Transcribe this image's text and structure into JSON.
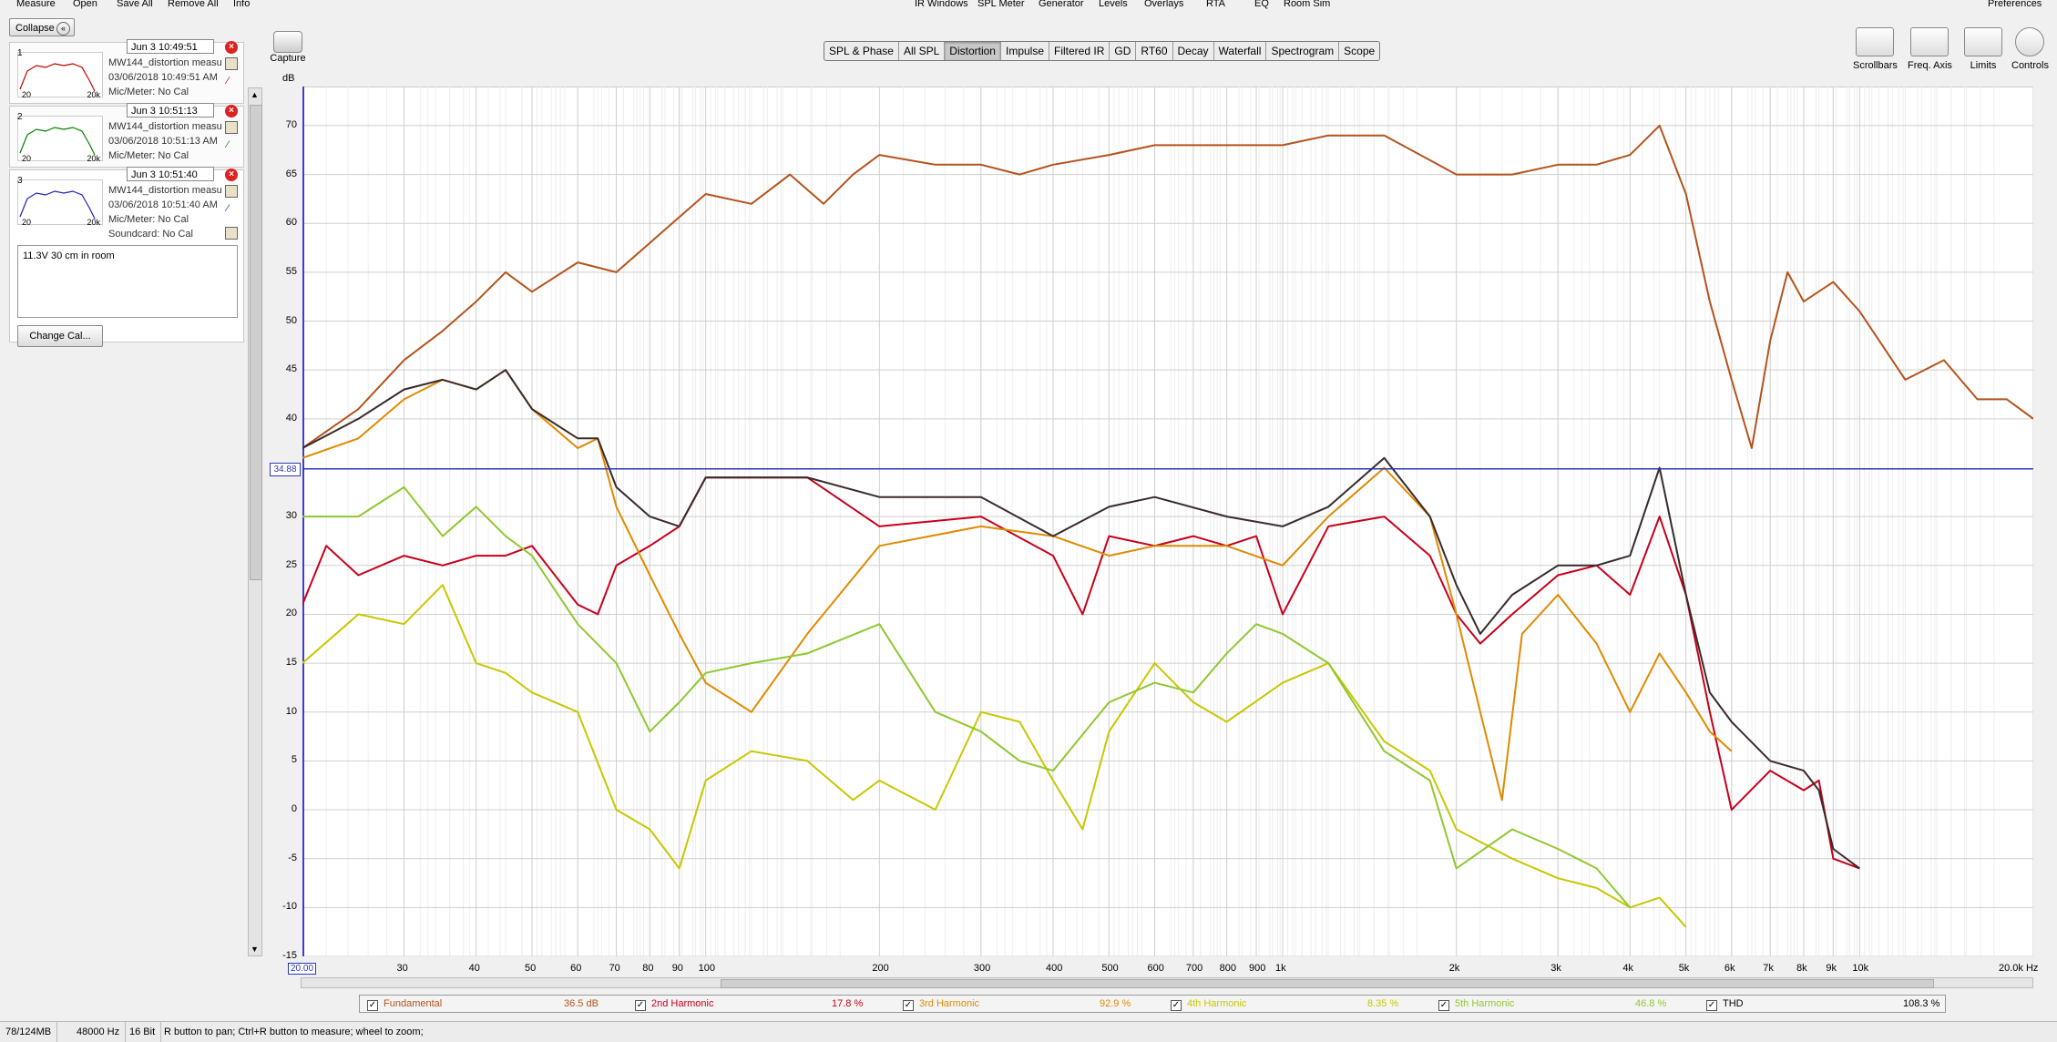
{
  "menu": {
    "left": [
      "Measure",
      "Open",
      "Save All",
      "Remove All",
      "Info"
    ],
    "center": [
      "IR Windows",
      "SPL Meter",
      "Generator",
      "Levels",
      "Overlays",
      "RTA",
      "EQ",
      "Room Sim"
    ],
    "right": "Preferences"
  },
  "panel": {
    "collapse_label": "Collapse",
    "measurements": [
      {
        "num": "1",
        "time": "Jun 3 10:49:51",
        "name": "MW144_distortion measu",
        "date": "03/06/2018 10:49:51 AM",
        "mic": "Mic/Meter: No Cal",
        "sound": "",
        "color": "#c00000",
        "thumb_lo": "20",
        "thumb_hi": "20k"
      },
      {
        "num": "2",
        "time": "Jun 3 10:51:13",
        "name": "MW144_distortion measu",
        "date": "03/06/2018 10:51:13 AM",
        "mic": "Mic/Meter: No Cal",
        "sound": "",
        "color": "#008000",
        "thumb_lo": "20",
        "thumb_hi": "20k"
      },
      {
        "num": "3",
        "time": "Jun 3 10:51:40",
        "name": "MW144_distortion measu",
        "date": "03/06/2018 10:51:40 AM",
        "mic": "Mic/Meter: No Cal",
        "sound": "Soundcard: No Cal",
        "color": "#2020c0",
        "thumb_lo": "20",
        "thumb_hi": "20k"
      }
    ],
    "notes": "11.3V 30 cm in room",
    "change_cal": "Change Cal..."
  },
  "capture": {
    "label": "Capture"
  },
  "tabs": [
    {
      "label": "SPL & Phase",
      "active": false
    },
    {
      "label": "All SPL",
      "active": false
    },
    {
      "label": "Distortion",
      "active": true
    },
    {
      "label": "Impulse",
      "active": false
    },
    {
      "label": "Filtered IR",
      "active": false
    },
    {
      "label": "GD",
      "active": false
    },
    {
      "label": "RT60",
      "active": false
    },
    {
      "label": "Decay",
      "active": false
    },
    {
      "label": "Waterfall",
      "active": false
    },
    {
      "label": "Spectrogram",
      "active": false
    },
    {
      "label": "Scope",
      "active": false
    }
  ],
  "tools": [
    "Scrollbars",
    "Freq. Axis",
    "Limits",
    "Controls"
  ],
  "legend": [
    {
      "label": "Fundamental",
      "value": "36.5 dB",
      "color": "#b5531c"
    },
    {
      "label": "2nd Harmonic",
      "value": "17.8 %",
      "color": "#c8001a"
    },
    {
      "label": "3rd Harmonic",
      "value": "92.9 %",
      "color": "#e08a00"
    },
    {
      "label": "4th Harmonic",
      "value": "8.35 %",
      "color": "#c8c800"
    },
    {
      "label": "5th Harmonic",
      "value": "46.8 %",
      "color": "#90c830"
    },
    {
      "label": "THD",
      "value": "108.3 %",
      "color": "#3a2a2a"
    }
  ],
  "status": {
    "memory": "78/124MB",
    "rate": "48000 Hz",
    "bits": "16 Bit",
    "hint": "R button to pan; Ctrl+R button to measure; wheel to zoom;"
  },
  "chart_data": {
    "type": "line",
    "ylabel": "dB",
    "xlabel": "Hz",
    "x_scale": "log",
    "xlim": [
      20,
      20000
    ],
    "ylim": [
      -15,
      74
    ],
    "grid": true,
    "x_ticks": [
      {
        "v": 20,
        "label": "20.00"
      },
      {
        "v": 30,
        "label": "30"
      },
      {
        "v": 40,
        "label": "40"
      },
      {
        "v": 50,
        "label": "50"
      },
      {
        "v": 60,
        "label": "60"
      },
      {
        "v": 70,
        "label": "70"
      },
      {
        "v": 80,
        "label": "80"
      },
      {
        "v": 90,
        "label": "90"
      },
      {
        "v": 100,
        "label": "100"
      },
      {
        "v": 200,
        "label": "200"
      },
      {
        "v": 300,
        "label": "300"
      },
      {
        "v": 400,
        "label": "400"
      },
      {
        "v": 500,
        "label": "500"
      },
      {
        "v": 600,
        "label": "600"
      },
      {
        "v": 700,
        "label": "700"
      },
      {
        "v": 800,
        "label": "800"
      },
      {
        "v": 900,
        "label": "900"
      },
      {
        "v": 1000,
        "label": "1k"
      },
      {
        "v": 2000,
        "label": "2k"
      },
      {
        "v": 3000,
        "label": "3k"
      },
      {
        "v": 4000,
        "label": "4k"
      },
      {
        "v": 5000,
        "label": "5k"
      },
      {
        "v": 6000,
        "label": "6k"
      },
      {
        "v": 7000,
        "label": "7k"
      },
      {
        "v": 8000,
        "label": "8k"
      },
      {
        "v": 9000,
        "label": "9k"
      },
      {
        "v": 10000,
        "label": "10k"
      },
      {
        "v": 20000,
        "label": "20.0k Hz"
      }
    ],
    "y_ticks": [
      70,
      65,
      60,
      55,
      50,
      45,
      40,
      30,
      25,
      20,
      15,
      10,
      5,
      0,
      -5,
      -10,
      -15
    ],
    "cursor": {
      "y": 34.88,
      "label": "34.88"
    },
    "series": [
      {
        "name": "Fundamental",
        "color": "#b5531c",
        "x": [
          20,
          25,
          30,
          35,
          40,
          45,
          50,
          60,
          70,
          80,
          100,
          120,
          140,
          160,
          180,
          200,
          250,
          300,
          350,
          400,
          500,
          600,
          800,
          1000,
          1200,
          1500,
          2000,
          2500,
          3000,
          3500,
          4000,
          4500,
          5000,
          5500,
          6000,
          6500,
          7000,
          7500,
          8000,
          9000,
          10000,
          12000,
          14000,
          16000,
          18000,
          20000
        ],
        "y": [
          37,
          41,
          46,
          49,
          52,
          55,
          53,
          56,
          55,
          58,
          63,
          62,
          65,
          62,
          65,
          67,
          66,
          66,
          65,
          66,
          67,
          68,
          68,
          68,
          69,
          69,
          65,
          65,
          66,
          66,
          67,
          70,
          63,
          52,
          44,
          37,
          48,
          55,
          52,
          54,
          51,
          44,
          46,
          42,
          42,
          40
        ]
      },
      {
        "name": "2nd Harmonic",
        "color": "#c8001a",
        "x": [
          20,
          22,
          25,
          30,
          35,
          40,
          45,
          50,
          60,
          65,
          70,
          80,
          90,
          100,
          120,
          150,
          200,
          300,
          400,
          450,
          500,
          600,
          700,
          800,
          900,
          1000,
          1200,
          1500,
          1800,
          2000,
          2200,
          2500,
          3000,
          3500,
          4000,
          4500,
          5000,
          5500,
          6000,
          7000,
          8000,
          8500,
          9000,
          10000
        ],
        "y": [
          21,
          27,
          24,
          26,
          25,
          26,
          26,
          27,
          21,
          20,
          25,
          27,
          29,
          34,
          34,
          34,
          29,
          30,
          26,
          20,
          28,
          27,
          28,
          27,
          28,
          20,
          29,
          30,
          26,
          20,
          17,
          20,
          24,
          25,
          22,
          30,
          22,
          10,
          0,
          4,
          2,
          3,
          -5,
          -6
        ]
      },
      {
        "name": "3rd Harmonic",
        "color": "#e08a00",
        "x": [
          20,
          25,
          30,
          35,
          40,
          45,
          50,
          60,
          65,
          70,
          80,
          90,
          100,
          120,
          150,
          200,
          300,
          400,
          500,
          600,
          800,
          1000,
          1200,
          1500,
          1800,
          2000,
          2200,
          2400,
          2600,
          3000,
          3500,
          4000,
          4500,
          5000,
          5500,
          6000
        ],
        "y": [
          36,
          38,
          42,
          44,
          43,
          45,
          41,
          37,
          38,
          31,
          24,
          18,
          13,
          10,
          18,
          27,
          29,
          28,
          26,
          27,
          27,
          25,
          30,
          35,
          30,
          20,
          10,
          1,
          18,
          22,
          17,
          10,
          16,
          12,
          8,
          6
        ]
      },
      {
        "name": "4th Harmonic",
        "color": "#c8c800",
        "x": [
          20,
          25,
          30,
          35,
          40,
          45,
          50,
          60,
          70,
          80,
          90,
          100,
          120,
          150,
          180,
          200,
          250,
          300,
          350,
          400,
          450,
          500,
          600,
          700,
          800,
          1000,
          1200,
          1500,
          1800,
          2000,
          2500,
          3000,
          3500,
          4000,
          4500,
          5000
        ],
        "y": [
          15,
          20,
          19,
          23,
          15,
          14,
          12,
          10,
          0,
          -2,
          -6,
          3,
          6,
          5,
          1,
          3,
          0,
          10,
          9,
          3,
          -2,
          8,
          15,
          11,
          9,
          13,
          15,
          7,
          4,
          -2,
          -5,
          -7,
          -8,
          -10,
          -9,
          -12
        ]
      },
      {
        "name": "5th Harmonic",
        "color": "#90c830",
        "x": [
          20,
          25,
          30,
          35,
          40,
          45,
          50,
          60,
          70,
          80,
          90,
          100,
          120,
          150,
          200,
          250,
          300,
          350,
          400,
          500,
          600,
          700,
          800,
          900,
          1000,
          1200,
          1500,
          1800,
          2000,
          2500,
          3000,
          3500,
          4000
        ],
        "y": [
          30,
          30,
          33,
          28,
          31,
          28,
          26,
          19,
          15,
          8,
          11,
          14,
          15,
          16,
          19,
          10,
          8,
          5,
          4,
          11,
          13,
          12,
          16,
          19,
          18,
          15,
          6,
          3,
          -6,
          -2,
          -4,
          -6,
          -10
        ]
      },
      {
        "name": "THD",
        "color": "#3a2a2a",
        "x": [
          20,
          25,
          30,
          35,
          40,
          45,
          50,
          60,
          65,
          70,
          80,
          90,
          100,
          120,
          150,
          200,
          300,
          400,
          500,
          600,
          800,
          1000,
          1200,
          1500,
          1800,
          2000,
          2200,
          2500,
          3000,
          3500,
          4000,
          4500,
          5000,
          5500,
          6000,
          7000,
          8000,
          8500,
          9000,
          10000
        ],
        "y": [
          37,
          40,
          43,
          44,
          43,
          45,
          41,
          38,
          38,
          33,
          30,
          29,
          34,
          34,
          34,
          32,
          32,
          28,
          31,
          32,
          30,
          29,
          31,
          36,
          30,
          23,
          18,
          22,
          25,
          25,
          26,
          35,
          22,
          12,
          9,
          5,
          4,
          2,
          -4,
          -6
        ]
      }
    ]
  }
}
